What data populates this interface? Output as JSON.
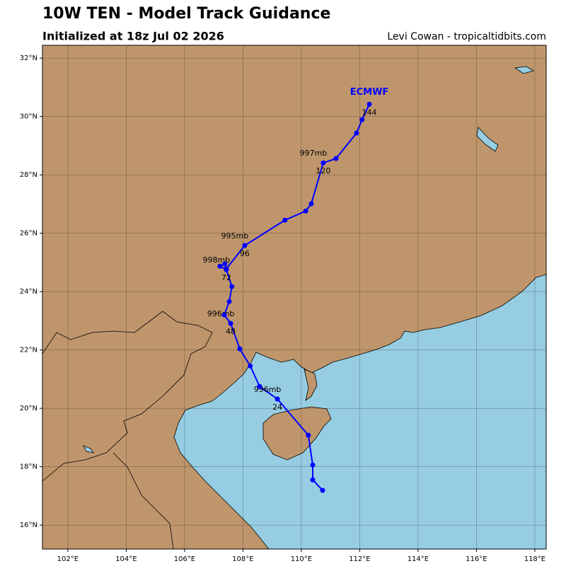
{
  "chart_data": {
    "type": "track",
    "title": "10W TEN - Model Track Guidance",
    "subtitle": "Initialized at 18z Jul 02 2026",
    "credit": "Levi Cowan - tropicaltidbits.com",
    "series": [
      {
        "name": "ECMWF",
        "color": "#0000ff",
        "x": [
          110.73,
          110.39,
          110.39,
          110.24,
          109.18,
          108.57,
          108.25,
          107.89,
          107.58,
          107.36,
          107.53,
          107.62,
          107.43,
          107.21,
          107.38,
          107.43,
          108.06,
          109.44,
          110.15,
          110.34,
          110.75,
          111.19,
          111.89,
          112.08,
          112.33
        ],
        "values": [
          17.19,
          17.55,
          18.06,
          19.08,
          20.32,
          20.75,
          21.45,
          22.04,
          22.91,
          23.2,
          23.66,
          24.17,
          24.75,
          24.87,
          24.95,
          24.78,
          25.58,
          26.45,
          26.76,
          27.01,
          28.41,
          28.56,
          29.43,
          29.89,
          30.42
        ],
        "hour_labels": [
          null,
          null,
          null,
          null,
          "24",
          null,
          null,
          null,
          "48",
          null,
          null,
          null,
          "72",
          null,
          null,
          null,
          "96",
          null,
          null,
          null,
          "120",
          null,
          null,
          null,
          "144"
        ],
        "pressure_labels": [
          null,
          null,
          null,
          null,
          "996mb",
          null,
          null,
          null,
          "996mb",
          null,
          null,
          null,
          "998mb",
          null,
          null,
          null,
          "995mb",
          null,
          null,
          null,
          "997mb",
          null,
          null,
          null,
          null
        ]
      }
    ],
    "xlim": [
      101.13,
      118.39
    ],
    "ylim": [
      15.18,
      32.44
    ],
    "xticks": [
      {
        "value": 102,
        "label": "102°E"
      },
      {
        "value": 104,
        "label": "104°E"
      },
      {
        "value": 106,
        "label": "106°E"
      },
      {
        "value": 108,
        "label": "108°E"
      },
      {
        "value": 110,
        "label": "110°E"
      },
      {
        "value": 112,
        "label": "112°E"
      },
      {
        "value": 114,
        "label": "114°E"
      },
      {
        "value": 116,
        "label": "116°E"
      },
      {
        "value": 118,
        "label": "118°E"
      }
    ],
    "yticks": [
      {
        "value": 16,
        "label": "16°N"
      },
      {
        "value": 18,
        "label": "18°N"
      },
      {
        "value": 20,
        "label": "20°N"
      },
      {
        "value": 22,
        "label": "22°N"
      },
      {
        "value": 24,
        "label": "24°N"
      },
      {
        "value": 26,
        "label": "26°N"
      },
      {
        "value": 28,
        "label": "28°N"
      },
      {
        "value": 30,
        "label": "30°N"
      },
      {
        "value": 32,
        "label": "32°N"
      }
    ],
    "grid": true
  }
}
